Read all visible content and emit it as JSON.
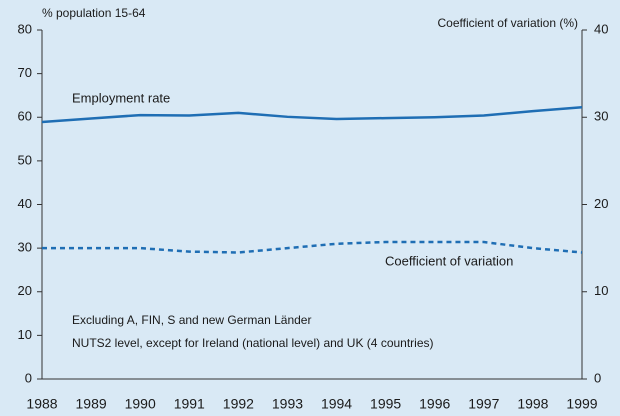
{
  "chart_data": {
    "type": "line",
    "y_label": "% population 15-64",
    "y2_label": "Coefficient of variation (%)",
    "categories": [
      "1988",
      "1989",
      "1990",
      "1991",
      "1992",
      "1993",
      "1994",
      "1995",
      "1996",
      "1997",
      "1998",
      "1999"
    ],
    "series": [
      {
        "name": "Employment rate",
        "color": "#1f6eb4",
        "dash": "solid",
        "values": [
          58.9,
          59.7,
          60.5,
          60.4,
          61.0,
          60.1,
          59.6,
          59.8,
          60.0,
          60.4,
          61.4,
          62.3
        ]
      },
      {
        "name": "Coefficient of variation",
        "color": "#1f6eb4",
        "dash": "dotted",
        "axis": "y2",
        "values": [
          15.0,
          15.0,
          15.0,
          14.6,
          14.5,
          15.0,
          15.5,
          15.7,
          15.7,
          15.7,
          15.0,
          14.5
        ]
      }
    ],
    "ylim": [
      0,
      80
    ],
    "yticks": [
      0,
      10,
      20,
      30,
      40,
      50,
      60,
      70,
      80
    ],
    "y2lim": [
      0,
      40
    ],
    "y2ticks": [
      0,
      10,
      20,
      30,
      40
    ],
    "annotations": [
      "Excluding A, FIN, S and new German Länder",
      "NUTS2 level, except for Ireland (national level) and UK (4 countries)"
    ]
  }
}
